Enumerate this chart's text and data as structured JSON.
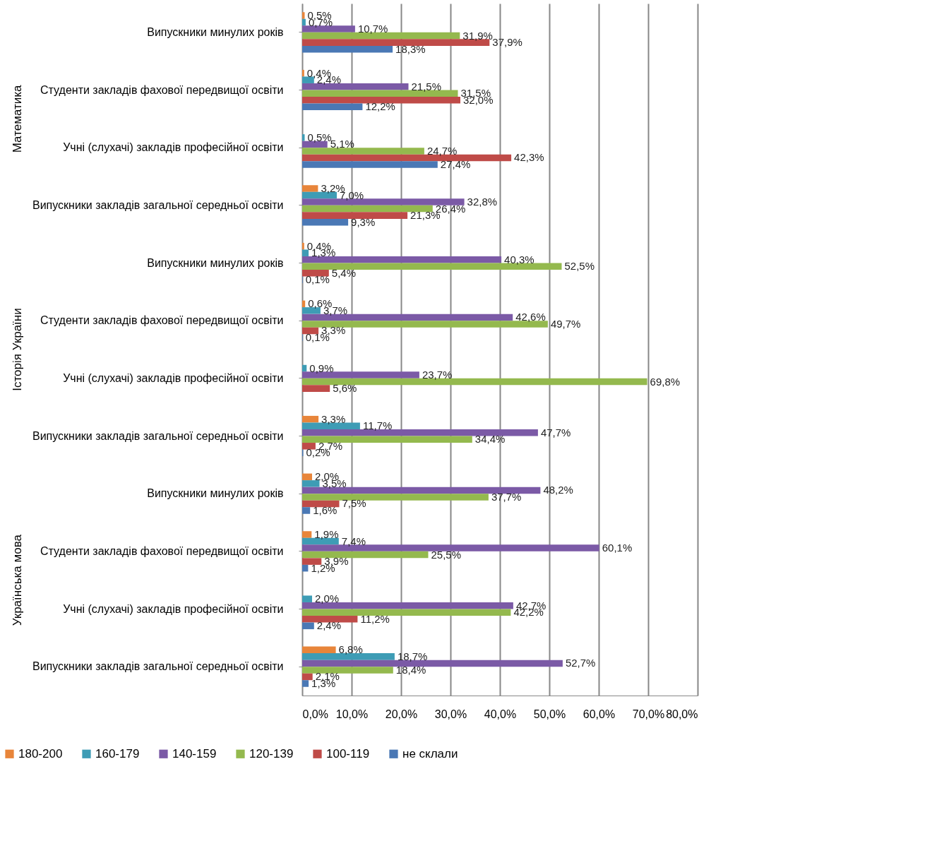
{
  "chart_data": {
    "type": "bar",
    "orientation": "horizontal",
    "categories": [
      "Випускники минулих років",
      "Студенти закладів фахової передвищої освіти",
      "Учні (слухачі) закладів професійної освіти",
      "Випускники закладів загальної середньої освіти",
      "Випускники минулих років",
      "Студенти закладів фахової передвищої освіти",
      "Учні (слухачі) закладів професійної освіти",
      "Випускники закладів загальної середньої освіти",
      "Випускники минулих років",
      "Студенти закладів фахової передвищої освіти",
      "Учні (слухачі) закладів професійної освіти",
      "Випускники закладів загальної середньої освіти"
    ],
    "annotations": [
      "Математика",
      "Історія України",
      "Українська мова"
    ],
    "series": [
      {
        "name": "180-200",
        "color": "#e8853a",
        "values": [
          0.5,
          0.4,
          null,
          3.2,
          0.4,
          0.6,
          null,
          3.3,
          2.0,
          1.9,
          null,
          6.8
        ],
        "value_labels": [
          "0,5%",
          "0,4%",
          null,
          "3,2%",
          "0,4%",
          "0,6%",
          null,
          "3,3%",
          "2,0%",
          "1,9%",
          null,
          "6,8%"
        ]
      },
      {
        "name": "160-179",
        "color": "#3e9cb5",
        "values": [
          0.7,
          2.4,
          0.5,
          7.0,
          1.3,
          3.7,
          0.9,
          11.7,
          3.5,
          7.4,
          2.0,
          18.7
        ],
        "value_labels": [
          "0,7%",
          "2,4%",
          "0,5%",
          "7,0%",
          "1,3%",
          "3,7%",
          "0,9%",
          "11,7%",
          "3,5%",
          "7,4%",
          "2,0%",
          "18,7%"
        ]
      },
      {
        "name": "140-159",
        "color": "#7b5aa6",
        "values": [
          10.7,
          21.5,
          5.1,
          32.8,
          40.3,
          42.6,
          23.7,
          47.7,
          48.2,
          60.1,
          42.7,
          52.7
        ],
        "value_labels": [
          "10,7%",
          "21,5%",
          "5,1%",
          "32,8%",
          "40,3%",
          "42,6%",
          "23,7%",
          "47,7%",
          "48,2%",
          "60,1%",
          "42,7%",
          "52,7%"
        ]
      },
      {
        "name": "120-139",
        "color": "#94b94e",
        "values": [
          31.9,
          31.5,
          24.7,
          26.4,
          52.5,
          49.7,
          69.8,
          34.4,
          37.7,
          25.5,
          42.2,
          18.4
        ],
        "value_labels": [
          "31,9%",
          "31,5%",
          "24,7%",
          "26,4%",
          "52,5%",
          "49,7%",
          "69,8%",
          "34,4%",
          "37,7%",
          "25,5%",
          "42,2%",
          "18,4%"
        ]
      },
      {
        "name": "100-119",
        "color": "#bf4b48",
        "values": [
          37.9,
          32.0,
          42.3,
          21.3,
          5.4,
          3.3,
          5.6,
          2.7,
          7.5,
          3.9,
          11.2,
          2.1
        ],
        "value_labels": [
          "37,9%",
          "32,0%",
          "42,3%",
          "21,3%",
          "5,4%",
          "3,3%",
          "5,6%",
          "2,7%",
          "7,5%",
          "3,9%",
          "11,2%",
          "2,1%"
        ]
      },
      {
        "name": "не склали",
        "color": "#4a78b5",
        "values": [
          18.3,
          12.2,
          27.4,
          9.3,
          0.1,
          0.1,
          null,
          0.2,
          1.6,
          1.2,
          2.4,
          1.3
        ],
        "value_labels": [
          "18,3%",
          "12,2%",
          "27,4%",
          "9,3%",
          "0,1%",
          "0,1%",
          null,
          "0,2%",
          "1,6%",
          "1,2%",
          "2,4%",
          "1,3%"
        ]
      }
    ],
    "xlim": [
      0,
      80
    ],
    "xticks": [
      {
        "value": 0,
        "label": "0,0%"
      },
      {
        "value": 10,
        "label": "10,0%"
      },
      {
        "value": 20,
        "label": "20,0%"
      },
      {
        "value": 30,
        "label": "30,0%"
      },
      {
        "value": 40,
        "label": "40,0%"
      },
      {
        "value": 50,
        "label": "50,0%"
      },
      {
        "value": 60,
        "label": "60,0%"
      },
      {
        "value": 70,
        "label": "70,0%"
      },
      {
        "value": 80,
        "label": "80,0%"
      }
    ],
    "grid": "x",
    "legend": "bottom"
  }
}
